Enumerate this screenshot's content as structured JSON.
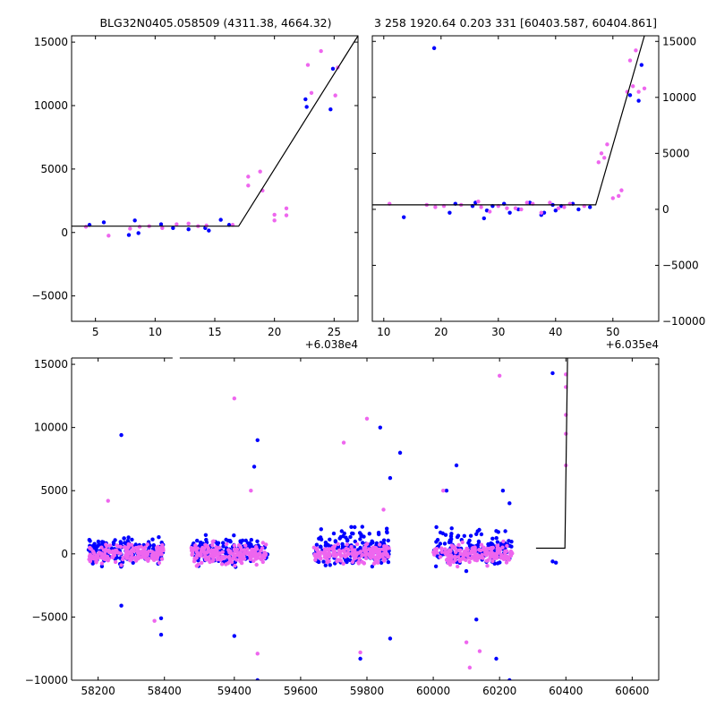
{
  "chart_data": [
    {
      "type": "scatter",
      "panel": "top-left",
      "title": "BLG32N0405.058509 (4311.38, 4664.32)",
      "xlabel": "",
      "ylabel": "",
      "x_offset_label": "+6.038e4",
      "xlim": [
        3,
        27
      ],
      "ylim": [
        -7000,
        15500
      ],
      "x_ticks": [
        5,
        10,
        15,
        20,
        25
      ],
      "y_ticks": [
        -5000,
        0,
        5000,
        10000,
        15000
      ],
      "x_tick_labels": [
        "5",
        "10",
        "15",
        "20",
        "25"
      ],
      "y_tick_labels": [
        "−5000",
        "0",
        "5000",
        "10000",
        "15000"
      ],
      "model_line": [
        [
          3,
          500
        ],
        [
          17,
          500
        ],
        [
          27,
          15500
        ]
      ],
      "series": [
        {
          "color": "#0000ff",
          "points": [
            [
              4.5,
              600
            ],
            [
              5.7,
              800
            ],
            [
              7.8,
              -200
            ],
            [
              8.3,
              950
            ],
            [
              8.6,
              -50
            ],
            [
              10.5,
              650
            ],
            [
              11.5,
              350
            ],
            [
              12.8,
              250
            ],
            [
              14.2,
              350
            ],
            [
              14.5,
              150
            ],
            [
              15.5,
              1000
            ],
            [
              16.2,
              600
            ],
            [
              22.6,
              10500
            ],
            [
              22.7,
              9900
            ],
            [
              24.7,
              9700
            ],
            [
              24.9,
              12900
            ]
          ]
        },
        {
          "color": "#ee66ee",
          "points": [
            [
              4.2,
              450
            ],
            [
              6.1,
              -250
            ],
            [
              7.9,
              300
            ],
            [
              8.7,
              450
            ],
            [
              9.5,
              500
            ],
            [
              10.6,
              350
            ],
            [
              11.8,
              650
            ],
            [
              12.8,
              700
            ],
            [
              13.6,
              500
            ],
            [
              14.3,
              550
            ],
            [
              16.5,
              600
            ],
            [
              17.8,
              4400
            ],
            [
              17.8,
              3700
            ],
            [
              18.8,
              4800
            ],
            [
              19.0,
              3300
            ],
            [
              20.0,
              1400
            ],
            [
              20.0,
              950
            ],
            [
              21.0,
              1900
            ],
            [
              21.0,
              1350
            ],
            [
              22.8,
              13200
            ],
            [
              23.1,
              11000
            ],
            [
              23.9,
              14300
            ],
            [
              25.1,
              10800
            ],
            [
              25.3,
              13000
            ]
          ]
        }
      ]
    },
    {
      "type": "scatter",
      "panel": "top-right",
      "title": "3 258 1920.64 0.203 331 [60403.587, 60404.861]",
      "xlabel": "",
      "ylabel": "",
      "x_offset_label": "+6.035e4",
      "xlim": [
        8,
        58
      ],
      "ylim": [
        -10000,
        15500
      ],
      "x_ticks": [
        10,
        20,
        30,
        40,
        50
      ],
      "y_ticks": [
        -10000,
        -5000,
        0,
        5000,
        10000,
        15000
      ],
      "x_tick_labels": [
        "10",
        "20",
        "30",
        "40",
        "50"
      ],
      "y_tick_labels": [
        "−10000",
        "−5000",
        "0",
        "5000",
        "10000",
        "15000"
      ],
      "model_line": [
        [
          8,
          400
        ],
        [
          47,
          400
        ],
        [
          55.5,
          15500
        ]
      ],
      "series": [
        {
          "color": "#0000ff",
          "points": [
            [
              13.5,
              -700
            ],
            [
              18.8,
              14400
            ],
            [
              21.5,
              -300
            ],
            [
              22.5,
              500
            ],
            [
              25.5,
              300
            ],
            [
              26.0,
              600
            ],
            [
              27.5,
              -800
            ],
            [
              28.0,
              -100
            ],
            [
              29.0,
              300
            ],
            [
              31.0,
              500
            ],
            [
              32.0,
              -300
            ],
            [
              33.5,
              0
            ],
            [
              35.5,
              600
            ],
            [
              37.5,
              -500
            ],
            [
              38.0,
              -300
            ],
            [
              39.5,
              400
            ],
            [
              40.0,
              -100
            ],
            [
              41.0,
              300
            ],
            [
              43.0,
              500
            ],
            [
              44.0,
              0
            ],
            [
              46.0,
              200
            ],
            [
              53.0,
              10200
            ],
            [
              54.5,
              9700
            ],
            [
              55.0,
              12900
            ]
          ]
        },
        {
          "color": "#ee66ee",
          "points": [
            [
              11.0,
              500
            ],
            [
              17.5,
              400
            ],
            [
              19.0,
              200
            ],
            [
              20.5,
              300
            ],
            [
              23.5,
              400
            ],
            [
              26.5,
              700
            ],
            [
              27.0,
              200
            ],
            [
              28.5,
              -200
            ],
            [
              30.0,
              300
            ],
            [
              31.5,
              100
            ],
            [
              33.0,
              100
            ],
            [
              34.0,
              0
            ],
            [
              35.0,
              600
            ],
            [
              36.0,
              500
            ],
            [
              37.5,
              -300
            ],
            [
              39.0,
              600
            ],
            [
              40.5,
              100
            ],
            [
              41.5,
              200
            ],
            [
              42.5,
              500
            ],
            [
              45.0,
              300
            ],
            [
              47.5,
              4200
            ],
            [
              48.0,
              5000
            ],
            [
              48.5,
              4600
            ],
            [
              49.0,
              5800
            ],
            [
              50.0,
              1000
            ],
            [
              51.0,
              1200
            ],
            [
              51.5,
              1700
            ],
            [
              52.5,
              10500
            ],
            [
              53.0,
              13300
            ],
            [
              53.5,
              11000
            ],
            [
              54.0,
              14200
            ],
            [
              54.5,
              10500
            ],
            [
              55.5,
              10800
            ]
          ]
        }
      ]
    },
    {
      "type": "scatter",
      "panel": "bottom",
      "title": "",
      "xlabel": "",
      "ylabel": "",
      "xlim": [
        58120,
        60680
      ],
      "ylim": [
        -10000,
        15500
      ],
      "broken_axis_gap": [
        58430,
        59230
      ],
      "x_ticks": [
        58200,
        58400,
        59400,
        59600,
        59800,
        60000,
        60200,
        60400,
        60600
      ],
      "y_ticks": [
        -10000,
        -5000,
        0,
        5000,
        10000,
        15000
      ],
      "x_tick_labels": [
        "58200",
        "58400",
        "59400",
        "59600",
        "59800",
        "60000",
        "60200",
        "60400",
        "60600"
      ],
      "y_tick_labels": [
        "−10000",
        "−5000",
        "0",
        "5000",
        "10000",
        "15000"
      ],
      "model_line": [
        [
          60310,
          450
        ],
        [
          60397,
          450
        ],
        [
          60405,
          15500
        ]
      ],
      "seasons": [
        [
          58170,
          58400
        ],
        [
          59270,
          59500
        ],
        [
          59640,
          59870
        ],
        [
          60000,
          60240
        ]
      ],
      "season_points_per_color": 170,
      "outliers": [
        {
          "color": "#0000ff",
          "points": [
            [
              58270,
              9400
            ],
            [
              58390,
              -5100
            ],
            [
              58390,
              -6400
            ],
            [
              58270,
              -4100
            ],
            [
              59470,
              9000
            ],
            [
              59460,
              6900
            ],
            [
              59400,
              -6500
            ],
            [
              59470,
              -10000
            ],
            [
              59840,
              10000
            ],
            [
              59900,
              8000
            ],
            [
              59870,
              -6700
            ],
            [
              59870,
              6000
            ],
            [
              59780,
              -8300
            ],
            [
              60070,
              7000
            ],
            [
              60130,
              -5200
            ],
            [
              60230,
              -10000
            ],
            [
              60210,
              5000
            ],
            [
              60230,
              4000
            ],
            [
              60190,
              -8300
            ],
            [
              60040,
              5000
            ],
            [
              60360,
              14300
            ],
            [
              60360,
              -600
            ],
            [
              60370,
              -700
            ]
          ]
        },
        {
          "color": "#ee66ee",
          "points": [
            [
              58230,
              4200
            ],
            [
              58370,
              -5300
            ],
            [
              59400,
              12300
            ],
            [
              59450,
              5000
            ],
            [
              59470,
              -7900
            ],
            [
              59730,
              8800
            ],
            [
              59800,
              10700
            ],
            [
              59780,
              -7800
            ],
            [
              59850,
              3500
            ],
            [
              60200,
              14100
            ],
            [
              60030,
              5000
            ],
            [
              60100,
              -7000
            ],
            [
              60140,
              -7700
            ],
            [
              60110,
              -9000
            ],
            [
              60400,
              13200
            ],
            [
              60400,
              14200
            ],
            [
              60400,
              11000
            ],
            [
              60400,
              9500
            ],
            [
              60400,
              7000
            ]
          ]
        }
      ]
    }
  ]
}
